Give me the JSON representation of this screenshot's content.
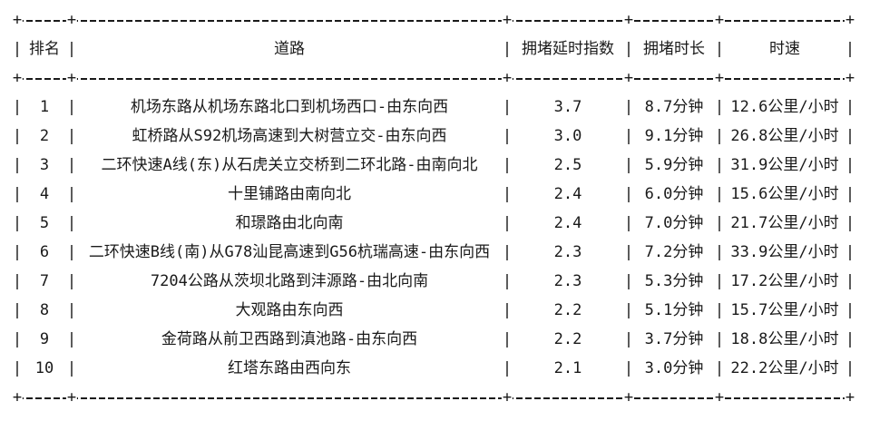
{
  "colors": {
    "background": "#ffffff",
    "text": "#1a1a1a"
  },
  "border": {
    "junction": "+",
    "pipe": "|"
  },
  "table": {
    "columns": {
      "rank": "排名",
      "road": "道路",
      "index": "拥堵延时指数",
      "duration": "拥堵时长",
      "speed": "时速"
    },
    "rows": [
      {
        "rank": "1",
        "road": "机场东路从机场东路北口到机场西口-由东向西",
        "index": "3.7",
        "duration": "8.7分钟",
        "speed": "12.6公里/小时"
      },
      {
        "rank": "2",
        "road": "虹桥路从S92机场高速到大树营立交-由东向西",
        "index": "3.0",
        "duration": "9.1分钟",
        "speed": "26.8公里/小时"
      },
      {
        "rank": "3",
        "road": "二环快速A线(东)从石虎关立交桥到二环北路-由南向北",
        "index": "2.5",
        "duration": "5.9分钟",
        "speed": "31.9公里/小时"
      },
      {
        "rank": "4",
        "road": "十里铺路由南向北",
        "index": "2.4",
        "duration": "6.0分钟",
        "speed": "15.6公里/小时"
      },
      {
        "rank": "5",
        "road": "和璟路由北向南",
        "index": "2.4",
        "duration": "7.0分钟",
        "speed": "21.7公里/小时"
      },
      {
        "rank": "6",
        "road": "二环快速B线(南)从G78汕昆高速到G56杭瑞高速-由东向西",
        "index": "2.3",
        "duration": "7.2分钟",
        "speed": "33.9公里/小时"
      },
      {
        "rank": "7",
        "road": "7204公路从茨坝北路到沣源路-由北向南",
        "index": "2.3",
        "duration": "5.3分钟",
        "speed": "17.2公里/小时"
      },
      {
        "rank": "8",
        "road": "大观路由东向西",
        "index": "2.2",
        "duration": "5.1分钟",
        "speed": "15.7公里/小时"
      },
      {
        "rank": "9",
        "road": "金荷路从前卫西路到滇池路-由东向西",
        "index": "2.2",
        "duration": "3.7分钟",
        "speed": "18.8公里/小时"
      },
      {
        "rank": "10",
        "road": "红塔东路由西向东",
        "index": "2.1",
        "duration": "3.0分钟",
        "speed": "22.2公里/小时"
      }
    ]
  }
}
